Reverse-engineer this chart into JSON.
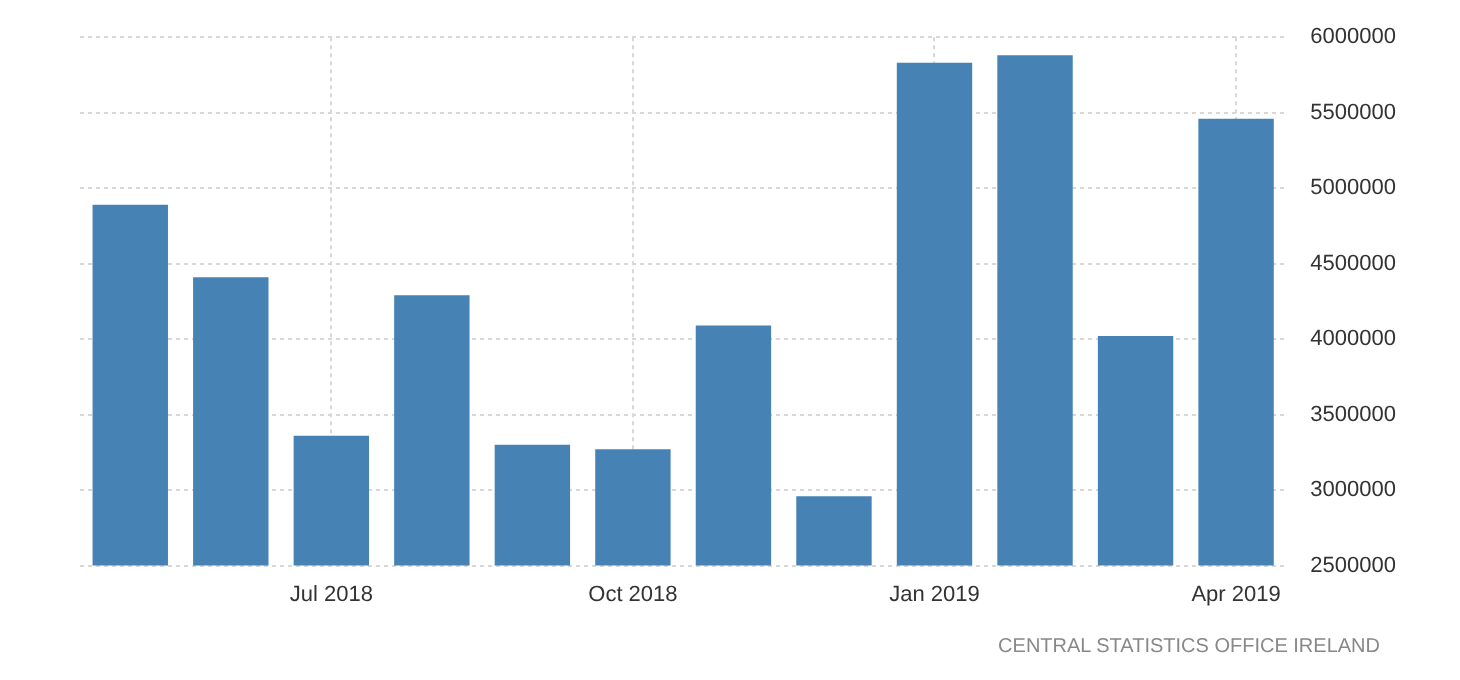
{
  "chart_data": {
    "type": "bar",
    "categories": [
      null,
      null,
      "Jul 2018",
      null,
      null,
      "Oct 2018",
      null,
      null,
      "Jan 2019",
      null,
      null,
      "Apr 2019"
    ],
    "values": [
      4890000,
      4410000,
      3360000,
      4290000,
      3300000,
      3270000,
      4090000,
      2960000,
      5830000,
      5880000,
      4020000,
      5460000
    ],
    "color": "#4682b4",
    "ylim": [
      2500000,
      6000000
    ],
    "yticks": [
      2500000,
      3000000,
      3500000,
      4000000,
      4500000,
      5000000,
      5500000,
      6000000
    ],
    "grid": true,
    "annotations": [
      "CENTRAL STATISTICS OFFICE IRELAND"
    ]
  }
}
